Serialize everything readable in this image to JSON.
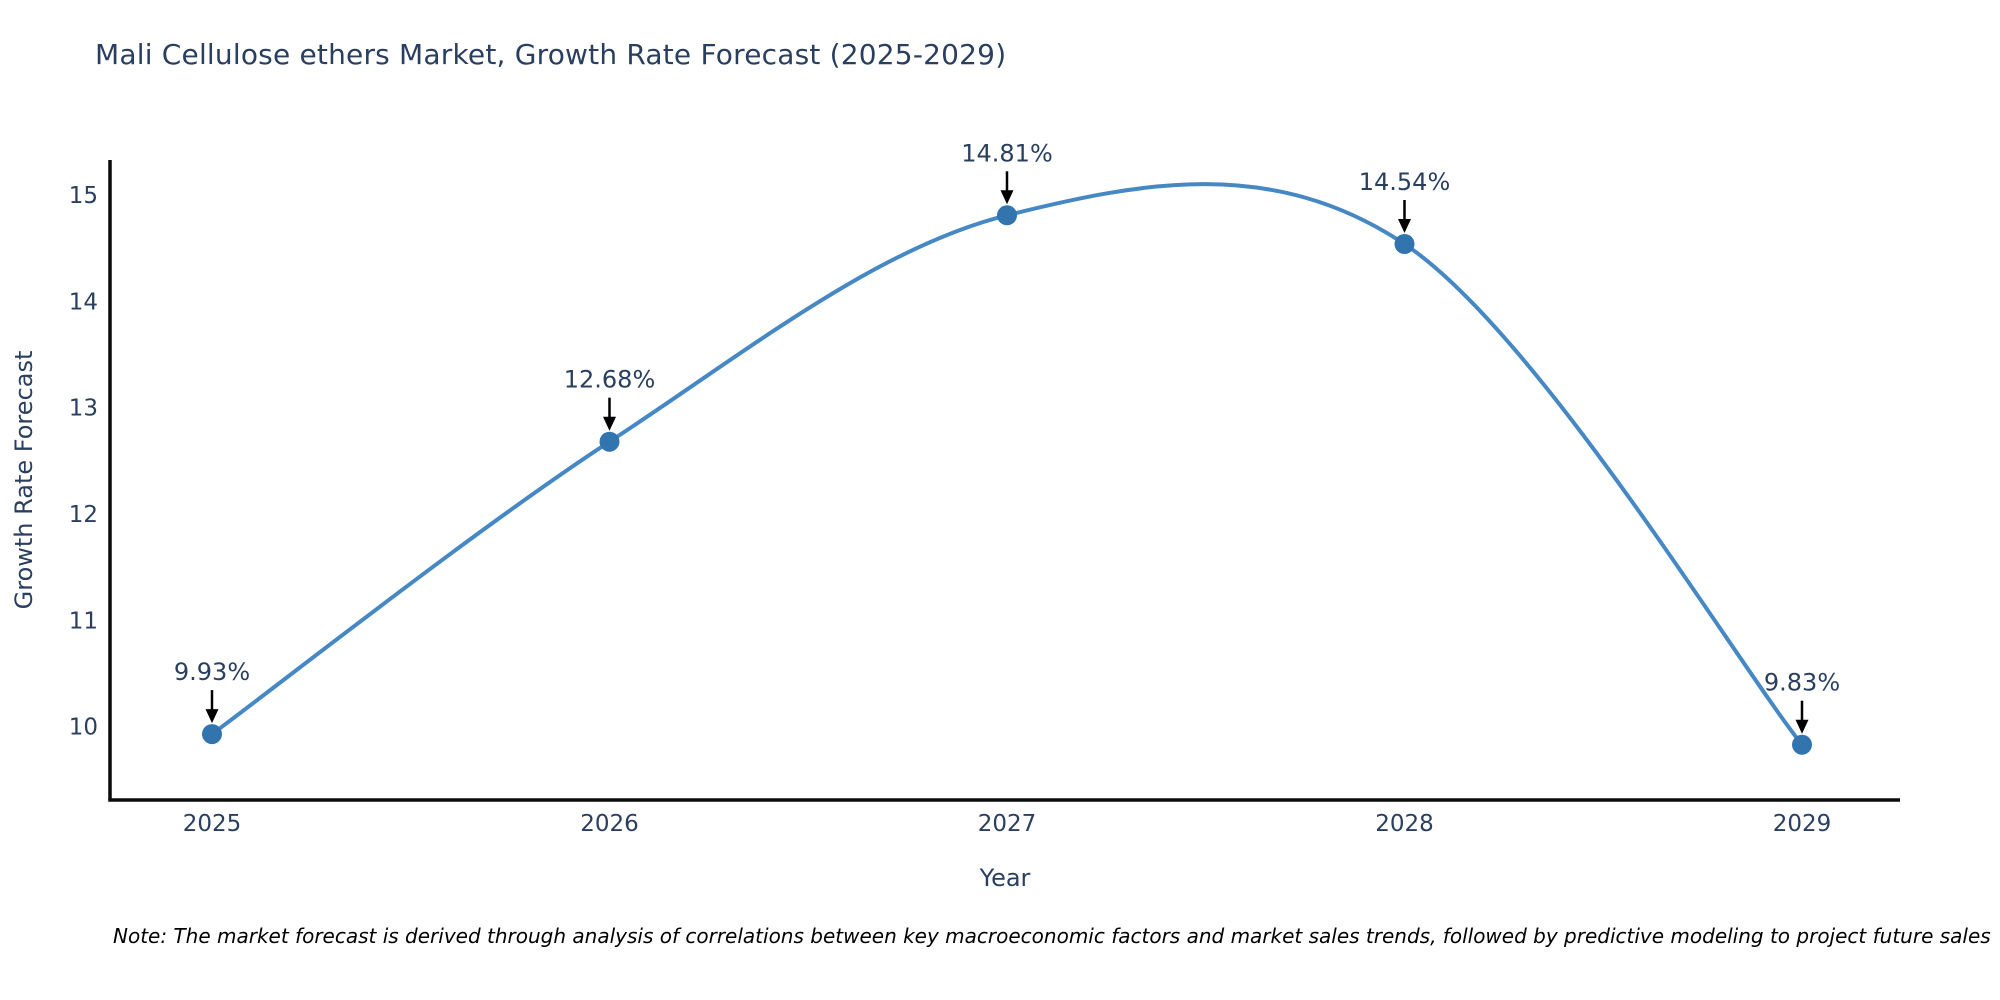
{
  "page": {
    "title": "Mali Cellulose ethers Market, Growth Rate Forecast (2025-2029)",
    "footnote": "Note: The market forecast is derived through analysis of correlations between key macroeconomic factors and market sales trends, followed by predictive modeling to project future sales"
  },
  "chart_data": {
    "type": "line",
    "title": "Mali Cellulose ethers Market, Growth Rate Forecast (2025-2029)",
    "xlabel": "Year",
    "ylabel": "Growth Rate Forecast",
    "x": [
      "2025",
      "2026",
      "2027",
      "2028",
      "2029"
    ],
    "series": [
      {
        "name": "Growth Rate Forecast",
        "values": [
          9.93,
          12.68,
          14.81,
          14.54,
          9.83
        ]
      }
    ],
    "point_labels": [
      "9.93%",
      "12.68%",
      "14.81%",
      "14.54%",
      "9.83%"
    ],
    "y_ticks": [
      10,
      11,
      12,
      13,
      14,
      15
    ],
    "ylim": [
      9.31,
      15.33
    ],
    "grid": false,
    "legend_position": "none",
    "line_shape": "spline",
    "marker": "circle",
    "annotation_arrows": true,
    "colors": {
      "line": "#4688c3",
      "marker": "#3274ad",
      "arrow": "#000000",
      "axis": "#0b0b0b",
      "title_text": "#2a3f5f",
      "tick_text": "#2a3f5f",
      "annotation_text": "#2a3f5f",
      "background": "#ffffff"
    }
  }
}
